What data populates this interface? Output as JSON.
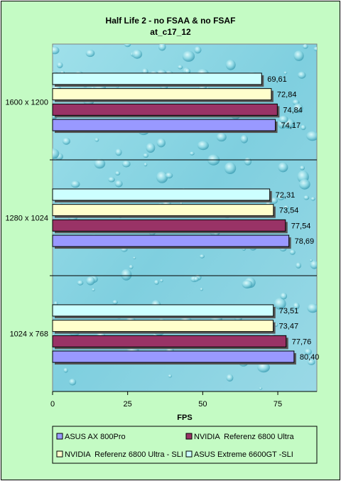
{
  "chart_data": {
    "type": "bar",
    "orientation": "horizontal",
    "title": "Half Life 2 - no FSAA & no FSAF",
    "subtitle": "at_c17_12",
    "xlabel": "FPS",
    "ylabel": "",
    "xlim": [
      0,
      88
    ],
    "x_ticks": [
      "0",
      "25",
      "50",
      "75"
    ],
    "categories": [
      "1600 x 1200",
      "1280 x 1024",
      "1024 x 768"
    ],
    "series": [
      {
        "name": "ASUS AX 800Pro",
        "color": "#9999ff",
        "values": [
          74.17,
          78.69,
          80.4
        ],
        "labels": [
          "74,17",
          "78,69",
          "80,40"
        ]
      },
      {
        "name": "NVIDIA  Referenz 6800 Ultra",
        "color": "#993366",
        "values": [
          74.84,
          77.54,
          77.76
        ],
        "labels": [
          "74,84",
          "77,54",
          "77,76"
        ]
      },
      {
        "name": "NVIDIA  Referenz 6800 Ultra - SLI",
        "color": "#ffffcc",
        "values": [
          72.84,
          73.54,
          73.47
        ],
        "labels": [
          "72,84",
          "73,54",
          "73,47"
        ]
      },
      {
        "name": "ASUS Extreme 6600GT -SLI",
        "color": "#ccffff",
        "values": [
          69.61,
          72.31,
          73.51
        ],
        "labels": [
          "69,61",
          "72,31",
          "73,51"
        ]
      }
    ],
    "plot_background": "water-droplet texture",
    "legend_position": "bottom",
    "grid": false
  }
}
